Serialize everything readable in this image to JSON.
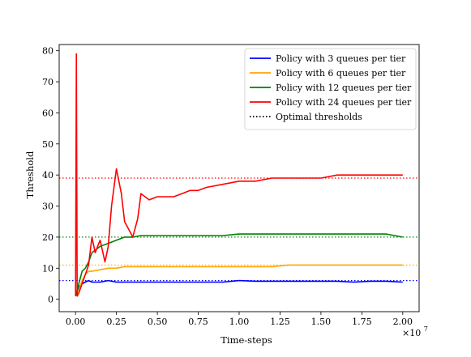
{
  "chart_data": {
    "type": "line",
    "title": "",
    "xlabel": "Time-steps",
    "ylabel": "Threshold",
    "x_multiplier_label": "×10",
    "x_multiplier_exp": "7",
    "xlim": [
      -0.1,
      2.1
    ],
    "ylim": [
      -4,
      82
    ],
    "xticks": [
      0.0,
      0.25,
      0.5,
      0.75,
      1.0,
      1.25,
      1.5,
      1.75,
      2.0
    ],
    "xtick_labels": [
      "0.00",
      "0.25",
      "0.50",
      "0.75",
      "1.00",
      "1.25",
      "1.50",
      "1.75",
      "2.00"
    ],
    "yticks": [
      0,
      10,
      20,
      30,
      40,
      50,
      60,
      70,
      80
    ],
    "ytick_labels": [
      "0",
      "10",
      "20",
      "30",
      "40",
      "50",
      "60",
      "70",
      "80"
    ],
    "grid": false,
    "legend_position": "top-right",
    "series": [
      {
        "name": "Policy with 3 queues per tier",
        "color": "#0000ff",
        "x": [
          0.0,
          0.02,
          0.04,
          0.06,
          0.08,
          0.1,
          0.15,
          0.2,
          0.25,
          0.3,
          0.35,
          0.4,
          0.5,
          0.6,
          0.7,
          0.8,
          0.9,
          1.0,
          1.1,
          1.2,
          1.3,
          1.4,
          1.5,
          1.6,
          1.7,
          1.8,
          1.9,
          2.0
        ],
        "y": [
          1,
          4,
          5,
          5.5,
          6,
          5.5,
          5.5,
          6,
          5.5,
          5.5,
          5.5,
          5.5,
          5.5,
          5.5,
          5.5,
          5.5,
          5.5,
          6,
          5.8,
          5.8,
          5.8,
          5.8,
          5.8,
          5.8,
          5.5,
          5.8,
          5.8,
          5.5
        ]
      },
      {
        "name": "Policy with 6 queues per tier",
        "color": "#ffa500",
        "x": [
          0.0,
          0.02,
          0.04,
          0.06,
          0.08,
          0.1,
          0.15,
          0.2,
          0.25,
          0.3,
          0.35,
          0.4,
          0.5,
          0.6,
          0.7,
          0.8,
          0.9,
          1.0,
          1.1,
          1.2,
          1.3,
          1.4,
          1.5,
          1.6,
          1.7,
          1.8,
          1.9,
          2.0
        ],
        "y": [
          1,
          3,
          6,
          8,
          9,
          9,
          9.5,
          10,
          10,
          10.5,
          10.5,
          10.5,
          10.5,
          10.5,
          10.5,
          10.5,
          10.5,
          10.5,
          10.5,
          10.5,
          11,
          11,
          11,
          11,
          11,
          11,
          11,
          11
        ]
      },
      {
        "name": "Policy with 12 queues per tier",
        "color": "#008000",
        "x": [
          0.0,
          0.02,
          0.04,
          0.06,
          0.08,
          0.1,
          0.15,
          0.2,
          0.25,
          0.3,
          0.35,
          0.4,
          0.5,
          0.6,
          0.7,
          0.8,
          0.9,
          1.0,
          1.1,
          1.2,
          1.3,
          1.4,
          1.5,
          1.6,
          1.7,
          1.8,
          1.9,
          2.0
        ],
        "y": [
          1,
          5,
          9,
          10,
          12,
          15,
          17,
          18,
          19,
          20,
          20,
          20.5,
          20.5,
          20.5,
          20.5,
          20.5,
          20.5,
          21,
          21,
          21,
          21,
          21,
          21,
          21,
          21,
          21,
          21,
          20
        ]
      },
      {
        "name": "Policy with 24 queues per tier",
        "color": "#ff0000",
        "x": [
          0.0,
          0.005,
          0.01,
          0.02,
          0.04,
          0.06,
          0.08,
          0.1,
          0.12,
          0.15,
          0.18,
          0.2,
          0.22,
          0.25,
          0.28,
          0.3,
          0.33,
          0.35,
          0.38,
          0.4,
          0.45,
          0.5,
          0.55,
          0.6,
          0.65,
          0.7,
          0.75,
          0.8,
          0.9,
          1.0,
          1.1,
          1.2,
          1.3,
          1.4,
          1.5,
          1.6,
          1.7,
          1.8,
          1.9,
          2.0
        ],
        "y": [
          1,
          79,
          1,
          2,
          5,
          8,
          11,
          20,
          15,
          19,
          12,
          17,
          30,
          42,
          34,
          25,
          22,
          20,
          26,
          34,
          32,
          33,
          33,
          33,
          34,
          35,
          35,
          36,
          37,
          38,
          38,
          39,
          39,
          39,
          39,
          40,
          40,
          40,
          40,
          40
        ]
      }
    ],
    "optimal_thresholds": {
      "name": "Optimal thresholds",
      "lines": [
        {
          "y": 6,
          "color": "#0000ff"
        },
        {
          "y": 11,
          "color": "#ffa500"
        },
        {
          "y": 20,
          "color": "#008000"
        },
        {
          "y": 39,
          "color": "#ff0000"
        }
      ]
    }
  }
}
